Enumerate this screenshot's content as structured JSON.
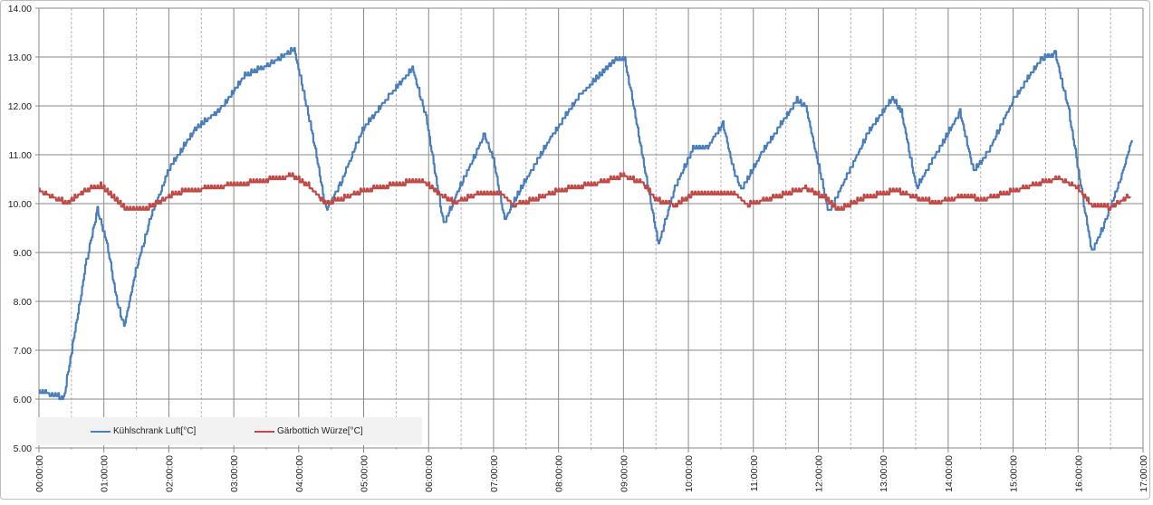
{
  "chart_data": {
    "type": "line",
    "title": "",
    "xlabel": "",
    "ylabel": "",
    "ylim": [
      5,
      14
    ],
    "xlim_hours": [
      0,
      17
    ],
    "y_ticks": [
      "5.00",
      "6.00",
      "7.00",
      "8.00",
      "9.00",
      "10.00",
      "11.00",
      "12.00",
      "13.00",
      "14.00"
    ],
    "x_ticks": [
      "00:00:00",
      "01:00:00",
      "02:00:00",
      "03:00:00",
      "04:00:00",
      "05:00:00",
      "06:00:00",
      "07:00:00",
      "08:00:00",
      "09:00:00",
      "10:00:00",
      "11:00:00",
      "12:00:00",
      "13:00:00",
      "14:00:00",
      "15:00:00",
      "16:00:00",
      "17:00:00"
    ],
    "grid": true,
    "legend_position": "bottom-left",
    "series": [
      {
        "name": "Kühlschrank Luft[°C]",
        "color": "#4a7ebb",
        "points": [
          [
            0,
            6.15
          ],
          [
            0.38,
            6.0
          ],
          [
            0.52,
            7.1
          ],
          [
            0.73,
            8.8
          ],
          [
            0.9,
            9.85
          ],
          [
            1.05,
            9.15
          ],
          [
            1.19,
            8.05
          ],
          [
            1.31,
            7.45
          ],
          [
            1.49,
            8.6
          ],
          [
            1.7,
            9.6
          ],
          [
            1.98,
            10.65
          ],
          [
            2.4,
            11.5
          ],
          [
            2.82,
            11.95
          ],
          [
            3.17,
            12.6
          ],
          [
            3.58,
            12.85
          ],
          [
            3.93,
            13.15
          ],
          [
            4.21,
            11.4
          ],
          [
            4.42,
            9.85
          ],
          [
            4.63,
            10.35
          ],
          [
            4.98,
            11.5
          ],
          [
            5.4,
            12.2
          ],
          [
            5.75,
            12.75
          ],
          [
            5.96,
            11.75
          ],
          [
            6.23,
            9.55
          ],
          [
            6.44,
            10.2
          ],
          [
            6.86,
            11.4
          ],
          [
            7.0,
            10.9
          ],
          [
            7.17,
            9.65
          ],
          [
            7.42,
            10.3
          ],
          [
            7.91,
            11.4
          ],
          [
            8.33,
            12.2
          ],
          [
            8.88,
            12.95
          ],
          [
            9.02,
            12.95
          ],
          [
            9.3,
            10.9
          ],
          [
            9.54,
            9.15
          ],
          [
            9.79,
            10.3
          ],
          [
            10.07,
            11.1
          ],
          [
            10.28,
            11.1
          ],
          [
            10.42,
            11.4
          ],
          [
            10.53,
            11.6
          ],
          [
            10.7,
            10.65
          ],
          [
            10.81,
            10.25
          ],
          [
            11.12,
            11.0
          ],
          [
            11.67,
            12.1
          ],
          [
            11.81,
            11.95
          ],
          [
            12.16,
            9.8
          ],
          [
            12.44,
            10.55
          ],
          [
            12.79,
            11.5
          ],
          [
            13.14,
            12.15
          ],
          [
            13.28,
            11.85
          ],
          [
            13.51,
            10.3
          ],
          [
            13.77,
            10.9
          ],
          [
            14.18,
            11.85
          ],
          [
            14.39,
            10.65
          ],
          [
            14.6,
            11.0
          ],
          [
            15.02,
            12.15
          ],
          [
            15.44,
            12.95
          ],
          [
            15.65,
            13.05
          ],
          [
            15.86,
            11.85
          ],
          [
            16.07,
            10.1
          ],
          [
            16.21,
            9.0
          ],
          [
            16.42,
            9.6
          ],
          [
            16.69,
            10.65
          ],
          [
            16.83,
            11.3
          ]
        ]
      },
      {
        "name": "Gärbottich Würze[°C]",
        "color": "#be4b48",
        "points": [
          [
            0,
            10.25
          ],
          [
            0.3,
            10.05
          ],
          [
            0.45,
            10.0
          ],
          [
            0.7,
            10.25
          ],
          [
            0.95,
            10.35
          ],
          [
            1.15,
            10.1
          ],
          [
            1.35,
            9.85
          ],
          [
            1.6,
            9.85
          ],
          [
            1.9,
            10.05
          ],
          [
            2.1,
            10.2
          ],
          [
            2.6,
            10.3
          ],
          [
            3.2,
            10.4
          ],
          [
            3.9,
            10.55
          ],
          [
            4.15,
            10.35
          ],
          [
            4.4,
            10.0
          ],
          [
            4.6,
            10.05
          ],
          [
            5.0,
            10.25
          ],
          [
            5.6,
            10.4
          ],
          [
            5.9,
            10.45
          ],
          [
            6.2,
            10.15
          ],
          [
            6.4,
            10.0
          ],
          [
            6.8,
            10.2
          ],
          [
            7.1,
            10.2
          ],
          [
            7.3,
            9.95
          ],
          [
            7.6,
            10.05
          ],
          [
            8.0,
            10.25
          ],
          [
            8.6,
            10.4
          ],
          [
            9.0,
            10.55
          ],
          [
            9.3,
            10.4
          ],
          [
            9.5,
            10.05
          ],
          [
            9.8,
            9.95
          ],
          [
            10.1,
            10.2
          ],
          [
            10.7,
            10.2
          ],
          [
            10.9,
            9.95
          ],
          [
            11.3,
            10.1
          ],
          [
            11.8,
            10.3
          ],
          [
            12.1,
            10.1
          ],
          [
            12.3,
            9.85
          ],
          [
            12.7,
            10.1
          ],
          [
            13.2,
            10.25
          ],
          [
            13.5,
            10.1
          ],
          [
            13.8,
            10.0
          ],
          [
            14.3,
            10.15
          ],
          [
            14.5,
            10.05
          ],
          [
            14.9,
            10.2
          ],
          [
            15.4,
            10.4
          ],
          [
            15.7,
            10.5
          ],
          [
            16.0,
            10.3
          ],
          [
            16.2,
            9.95
          ],
          [
            16.5,
            9.9
          ],
          [
            16.8,
            10.15
          ]
        ]
      }
    ]
  }
}
